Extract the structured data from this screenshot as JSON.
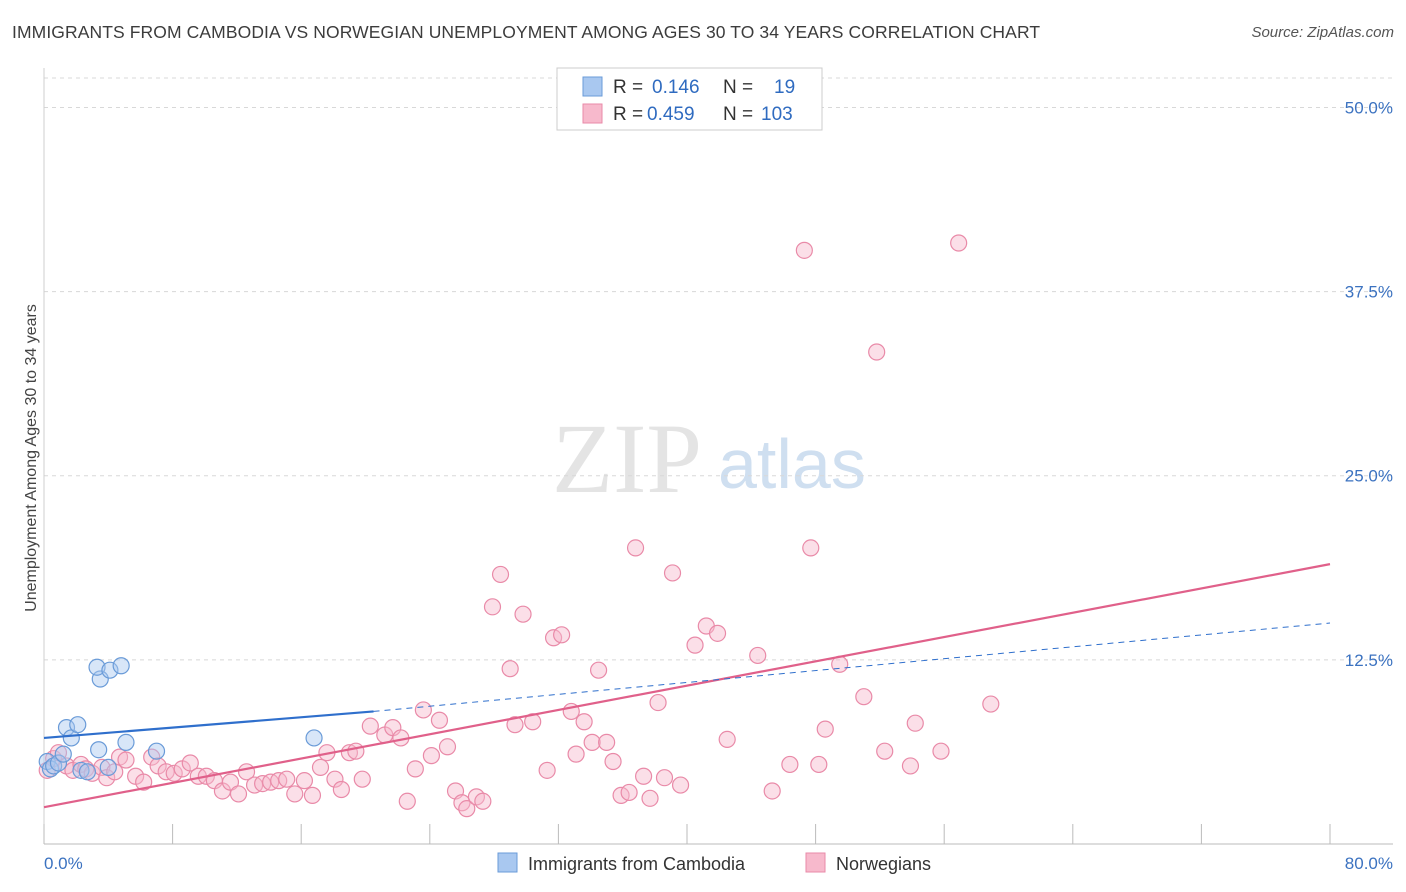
{
  "header": {
    "title": "IMMIGRANTS FROM CAMBODIA VS NORWEGIAN UNEMPLOYMENT AMONG AGES 30 TO 34 YEARS CORRELATION CHART",
    "source": "Source: ZipAtlas.com"
  },
  "watermark": {
    "zip": "ZIP",
    "atlas": "atlas"
  },
  "legend": {
    "rows": [
      {
        "r_label": "R =",
        "r_value": "0.146",
        "n_label": "N =",
        "n_value": "19"
      },
      {
        "r_label": "R =",
        "r_value": "0.459",
        "n_label": "N =",
        "n_value": "103"
      }
    ]
  },
  "colors": {
    "blue_fill": "#a9c8f0",
    "blue_stroke": "#6a9bd8",
    "blue_line": "#2f6fcc",
    "pink_fill": "#f7b9cc",
    "pink_stroke": "#e98aa8",
    "pink_line": "#e0608a",
    "grid": "#d8d8d8",
    "tick_text": "#3b72c0"
  },
  "chart_data": {
    "type": "scatter",
    "title": "IMMIGRANTS FROM CAMBODIA VS NORWEGIAN UNEMPLOYMENT AMONG AGES 30 TO 34 YEARS CORRELATION CHART",
    "xlabel": "",
    "ylabel": "Unemployment Among Ages 30 to 34 years",
    "xlim": [
      0,
      80
    ],
    "ylim": [
      0,
      52
    ],
    "x_tick_labels": [
      "0.0%",
      "80.0%"
    ],
    "y_ticks": [
      12.5,
      25.0,
      37.5,
      50.0
    ],
    "y_tick_labels": [
      "12.5%",
      "25.0%",
      "37.5%",
      "50.0%"
    ],
    "grid": true,
    "legend_position": "top-center",
    "series": [
      {
        "name": "Immigrants from Cambodia",
        "color": "#a9c8f0",
        "r": 0.146,
        "n": 19,
        "trend": {
          "solid": [
            [
              0,
              7.2
            ],
            [
              20.5,
              9.0
            ]
          ],
          "dashed": [
            [
              20.5,
              9.0
            ],
            [
              80,
              15.0
            ]
          ]
        },
        "points": [
          [
            0.2,
            5.6
          ],
          [
            0.4,
            5.1
          ],
          [
            0.6,
            5.3
          ],
          [
            0.9,
            5.5
          ],
          [
            1.2,
            6.1
          ],
          [
            1.4,
            7.9
          ],
          [
            1.7,
            7.2
          ],
          [
            2.1,
            8.1
          ],
          [
            2.3,
            5.0
          ],
          [
            2.7,
            4.9
          ],
          [
            3.5,
            11.2
          ],
          [
            3.4,
            6.4
          ],
          [
            3.3,
            12.0
          ],
          [
            4.1,
            11.8
          ],
          [
            4.0,
            5.2
          ],
          [
            4.8,
            12.1
          ],
          [
            5.1,
            6.9
          ],
          [
            7.0,
            6.3
          ],
          [
            16.8,
            7.2
          ]
        ]
      },
      {
        "name": "Norwegians",
        "color": "#f7b9cc",
        "r": 0.459,
        "n": 103,
        "trend": {
          "solid": [
            [
              0,
              2.5
            ],
            [
              80,
              19.0
            ]
          ]
        },
        "points": [
          [
            0.2,
            5.0
          ],
          [
            0.6,
            5.8
          ],
          [
            0.9,
            6.2
          ],
          [
            1.4,
            5.3
          ],
          [
            1.8,
            5.0
          ],
          [
            2.3,
            5.4
          ],
          [
            2.6,
            5.1
          ],
          [
            3.0,
            4.8
          ],
          [
            3.6,
            5.2
          ],
          [
            3.9,
            4.5
          ],
          [
            4.4,
            4.9
          ],
          [
            4.7,
            5.9
          ],
          [
            5.1,
            5.7
          ],
          [
            5.7,
            4.6
          ],
          [
            6.2,
            4.2
          ],
          [
            6.7,
            5.9
          ],
          [
            7.1,
            5.3
          ],
          [
            7.6,
            4.9
          ],
          [
            8.1,
            4.8
          ],
          [
            8.6,
            5.1
          ],
          [
            9.1,
            5.5
          ],
          [
            9.6,
            4.6
          ],
          [
            10.1,
            4.6
          ],
          [
            10.6,
            4.3
          ],
          [
            11.1,
            3.6
          ],
          [
            11.6,
            4.2
          ],
          [
            12.1,
            3.4
          ],
          [
            12.6,
            4.9
          ],
          [
            13.1,
            4.0
          ],
          [
            13.6,
            4.1
          ],
          [
            14.1,
            4.2
          ],
          [
            14.6,
            4.3
          ],
          [
            15.1,
            4.4
          ],
          [
            15.6,
            3.4
          ],
          [
            16.2,
            4.3
          ],
          [
            16.7,
            3.3
          ],
          [
            17.2,
            5.2
          ],
          [
            17.6,
            6.2
          ],
          [
            18.1,
            4.4
          ],
          [
            18.5,
            3.7
          ],
          [
            19.0,
            6.2
          ],
          [
            19.4,
            6.3
          ],
          [
            19.8,
            4.4
          ],
          [
            20.3,
            8.0
          ],
          [
            21.2,
            7.4
          ],
          [
            21.7,
            7.9
          ],
          [
            22.2,
            7.2
          ],
          [
            22.6,
            2.9
          ],
          [
            23.1,
            5.1
          ],
          [
            23.6,
            9.1
          ],
          [
            24.1,
            6.0
          ],
          [
            24.6,
            8.4
          ],
          [
            25.1,
            6.6
          ],
          [
            25.6,
            3.6
          ],
          [
            26.0,
            2.8
          ],
          [
            26.3,
            2.4
          ],
          [
            26.9,
            3.2
          ],
          [
            27.3,
            2.9
          ],
          [
            27.9,
            16.1
          ],
          [
            28.4,
            18.3
          ],
          [
            29.0,
            11.9
          ],
          [
            29.3,
            8.1
          ],
          [
            29.8,
            15.6
          ],
          [
            30.4,
            8.3
          ],
          [
            31.3,
            5.0
          ],
          [
            31.7,
            14.0
          ],
          [
            32.2,
            14.2
          ],
          [
            32.8,
            9.0
          ],
          [
            33.1,
            6.1
          ],
          [
            33.6,
            8.3
          ],
          [
            34.1,
            6.9
          ],
          [
            34.5,
            11.8
          ],
          [
            35.0,
            6.9
          ],
          [
            35.4,
            5.6
          ],
          [
            35.9,
            3.3
          ],
          [
            36.4,
            3.5
          ],
          [
            36.8,
            20.1
          ],
          [
            37.3,
            4.6
          ],
          [
            37.7,
            3.1
          ],
          [
            38.2,
            9.6
          ],
          [
            38.6,
            4.5
          ],
          [
            39.1,
            18.4
          ],
          [
            39.6,
            4.0
          ],
          [
            40.5,
            13.5
          ],
          [
            41.2,
            14.8
          ],
          [
            41.9,
            14.3
          ],
          [
            42.5,
            7.1
          ],
          [
            44.4,
            12.8
          ],
          [
            45.3,
            3.6
          ],
          [
            46.4,
            5.4
          ],
          [
            47.3,
            40.3
          ],
          [
            47.7,
            20.1
          ],
          [
            48.2,
            5.4
          ],
          [
            48.6,
            7.8
          ],
          [
            49.5,
            12.2
          ],
          [
            51.0,
            10.0
          ],
          [
            51.8,
            33.4
          ],
          [
            52.3,
            6.3
          ],
          [
            53.9,
            5.3
          ],
          [
            54.2,
            8.2
          ],
          [
            56.9,
            40.8
          ],
          [
            58.9,
            9.5
          ],
          [
            55.8,
            6.3
          ]
        ]
      }
    ]
  },
  "bottom_legend": {
    "items": [
      {
        "label": "Immigrants from Cambodia"
      },
      {
        "label": "Norwegians"
      }
    ]
  }
}
